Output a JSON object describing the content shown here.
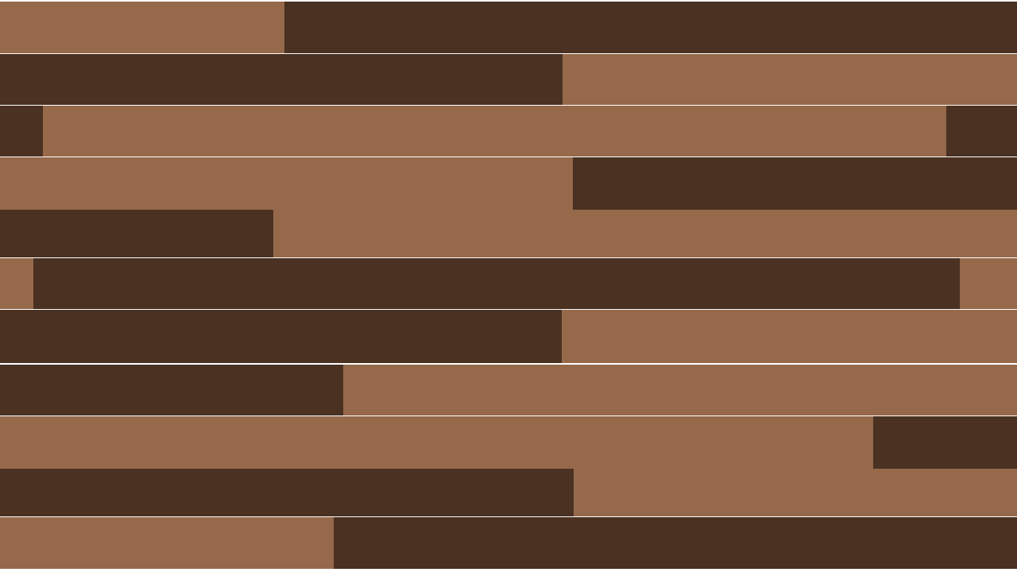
{
  "palette": {
    "light": "#96694a",
    "dark": "#4a3122",
    "gap": "#ffffff"
  },
  "planks": [
    [
      "light",
      "dark"
    ],
    [
      "dark",
      "light"
    ],
    [
      "dark",
      "light",
      "dark"
    ],
    [
      "light",
      "dark"
    ],
    [
      "dark",
      "light"
    ],
    [
      "light",
      "dark",
      "light"
    ],
    [
      "dark",
      "light"
    ],
    [
      "dark",
      "light"
    ],
    [
      "light",
      "dark"
    ],
    [
      "dark",
      "light"
    ],
    [
      "light",
      "dark"
    ]
  ]
}
